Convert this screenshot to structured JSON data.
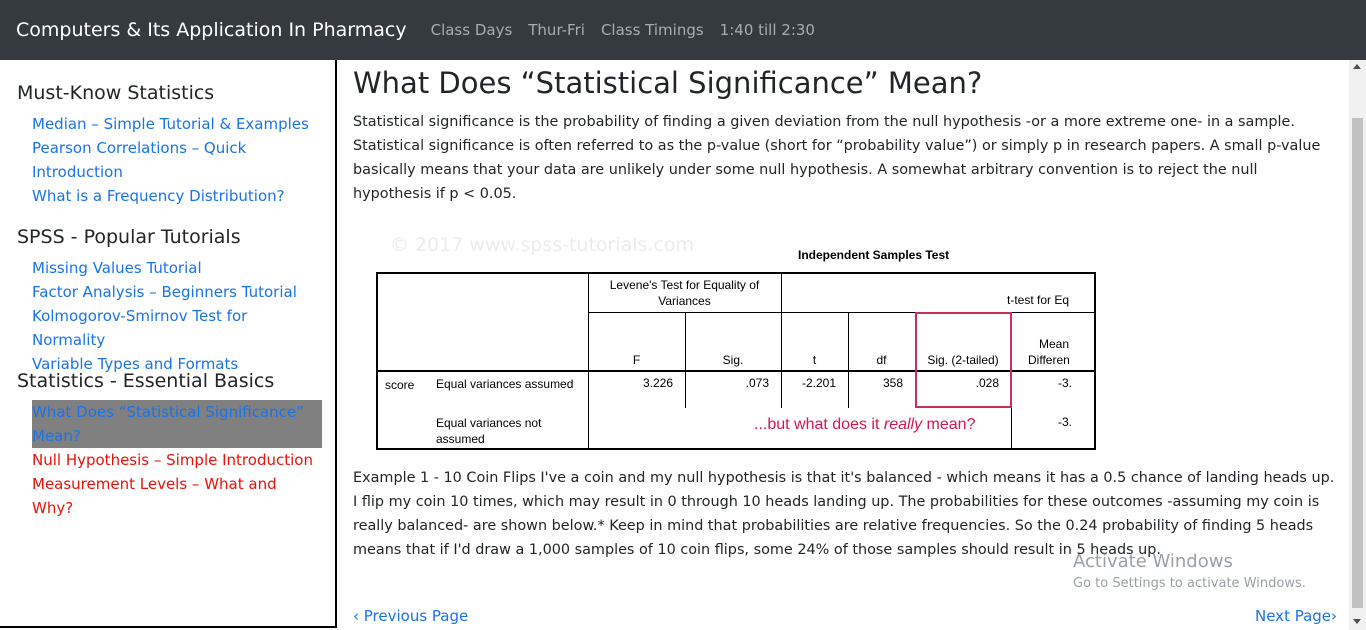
{
  "navbar": {
    "brand": "Computers & Its Application In Pharmacy",
    "items": [
      "Class Days",
      "Thur-Fri",
      "Class Timings",
      "1:40 till 2:30"
    ]
  },
  "sidebar": {
    "sections": [
      {
        "heading": "Must-Know Statistics",
        "items": [
          {
            "label": "Median – Simple Tutorial & Examples",
            "color": "blue"
          },
          {
            "label": "Pearson Correlations – Quick Introduction",
            "color": "blue"
          },
          {
            "label": "What is a Frequency Distribution?",
            "color": "blue"
          }
        ]
      },
      {
        "heading": "SPSS - Popular Tutorials",
        "items": [
          {
            "label": "Missing Values Tutorial",
            "color": "blue"
          },
          {
            "label": "Factor Analysis – Beginners Tutorial",
            "color": "blue"
          },
          {
            "label": "Kolmogorov-Smirnov Test for Normality",
            "color": "blue"
          },
          {
            "label": "Variable Types and Formats",
            "color": "blue"
          }
        ]
      },
      {
        "heading": "Statistics - Essential Basics",
        "items": [
          {
            "label": "What Does “Statistical Significance” Mean?",
            "color": "active"
          },
          {
            "label": "Null Hypothesis – Simple Introduction",
            "color": "red"
          },
          {
            "label": "Measurement Levels – What and Why?",
            "color": "red"
          }
        ]
      }
    ]
  },
  "main": {
    "title": "What Does “Statistical Significance” Mean?",
    "intro": "Statistical significance is the probability of finding a given deviation from the null hypothesis -or a more extreme one- in a sample. Statistical significance is often referred to as the p-value (short for “probability value”) or simply p in research papers. A small p-value basically means that your data are unlikely under some null hypothesis. A somewhat arbitrary convention is to reject the null hypothesis if p < 0.05.",
    "example": "Example 1 - 10 Coin Flips I've a coin and my null hypothesis is that it's balanced - which means it has a 0.5 chance of landing heads up. I flip my coin 10 times, which may result in 0 through 10 heads landing up. The probabilities for these outcomes -assuming my coin is really balanced- are shown below.* Keep in mind that probabilities are relative frequencies. So the 0.24 probability of finding 5 heads means that if I'd draw a 1,000 samples of 10 coin flips, some 24% of those samples should result in 5 heads up."
  },
  "figure": {
    "watermark": "© 2017 www.spss-tutorials.com",
    "title": "Independent Samples Test",
    "levene_header": "Levene's Test for Equality of Variances",
    "ttest_header": "t-test for Eq",
    "col_f": "F",
    "col_sig": "Sig.",
    "col_t": "t",
    "col_df": "df",
    "col_sig2": "Sig. (2-tailed)",
    "col_mean_1": "Mean",
    "col_mean_2": "Differen",
    "row_var": "score",
    "row1_label": "Equal variances assumed",
    "row2_label": "Equal variances not assumed",
    "row1": {
      "f": "3.226",
      "sig": ".073",
      "t": "-2.201",
      "df": "358",
      "sig2": ".028",
      "mean": "-3."
    },
    "row2": {
      "mean": "-3."
    },
    "annotation_pre": "...but what does it ",
    "annotation_em": "really",
    "annotation_post": " mean?"
  },
  "pagination": {
    "prev": "‹ Previous Page",
    "next": "Next Page›"
  },
  "windows_watermark": {
    "title": "Activate Windows",
    "subtitle": "Go to Settings to activate Windows."
  }
}
